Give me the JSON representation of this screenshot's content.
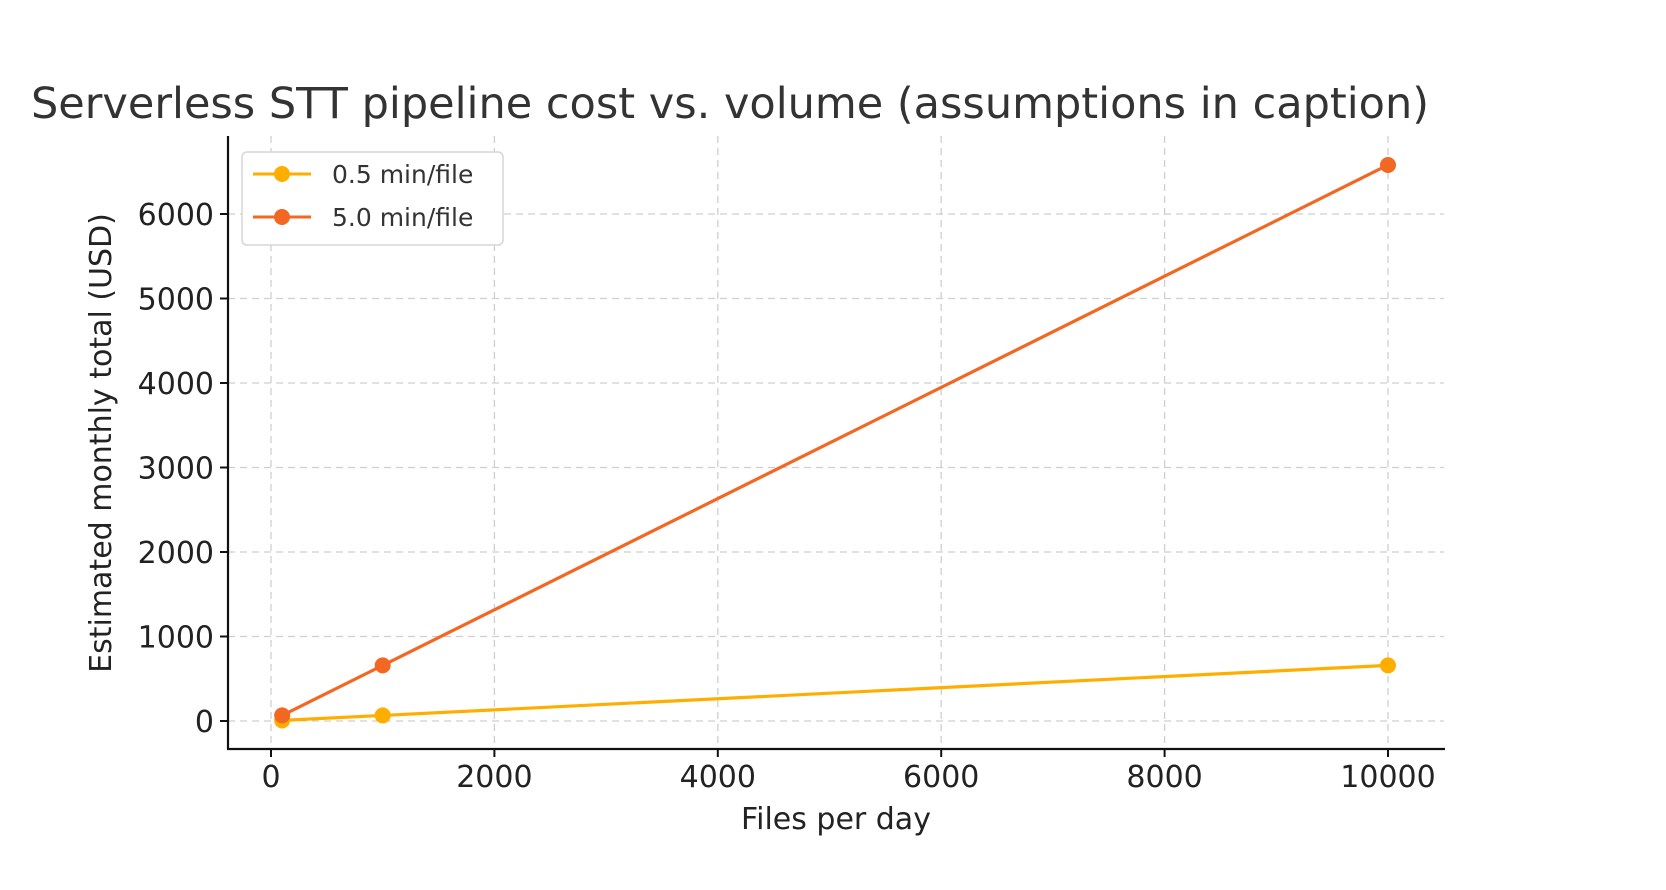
{
  "chart_data": {
    "type": "line",
    "title": "Serverless STT pipeline cost vs. volume (assumptions in caption)",
    "xlabel": "Files per day",
    "ylabel": "Estimated monthly total (USD)",
    "x": [
      100,
      1000,
      10000
    ],
    "xlim": [
      -400,
      10500
    ],
    "ylim": [
      -330,
      6800
    ],
    "xticks": [
      0,
      2000,
      4000,
      6000,
      8000,
      10000
    ],
    "yticks": [
      0,
      1000,
      2000,
      3000,
      4000,
      5000,
      6000
    ],
    "grid": true,
    "legend_position": "top-left",
    "series": [
      {
        "name": "0.5 min/file",
        "color": "#FFAE00",
        "values": [
          7,
          66,
          658
        ]
      },
      {
        "name": "5.0 min/file",
        "color": "#F26722",
        "values": [
          66,
          658,
          6580
        ]
      }
    ]
  }
}
